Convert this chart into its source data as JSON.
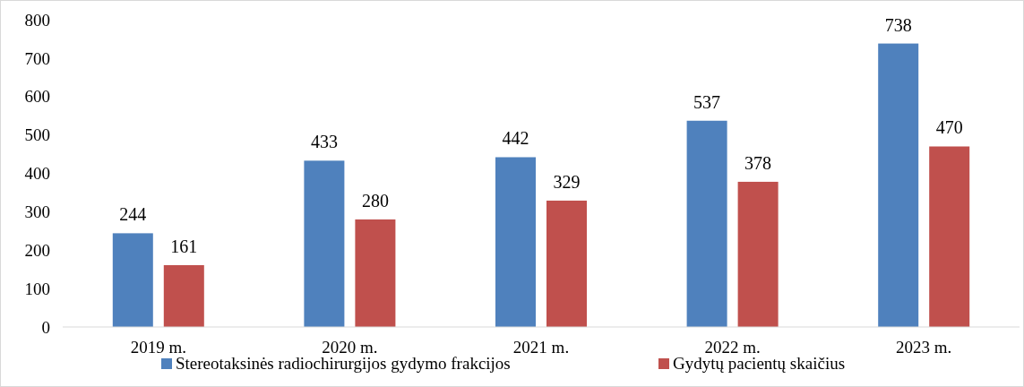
{
  "chart_data": {
    "type": "bar",
    "categories": [
      "2019 m.",
      "2020 m.",
      "2021 m.",
      "2022 m.",
      "2023 m."
    ],
    "series": [
      {
        "name": "Stereotaksinės radiochirurgijos gydymo frakcijos",
        "color": "#4f81bd",
        "values": [
          244,
          433,
          442,
          537,
          738
        ]
      },
      {
        "name": "Gydytų pacientų skaičius",
        "color": "#c0504d",
        "values": [
          161,
          280,
          329,
          378,
          470
        ]
      }
    ],
    "ylim": [
      0,
      800
    ],
    "yticks": [
      0,
      100,
      200,
      300,
      400,
      500,
      600,
      700,
      800
    ],
    "data_labels": true,
    "grid": false,
    "legend": "bottom"
  }
}
